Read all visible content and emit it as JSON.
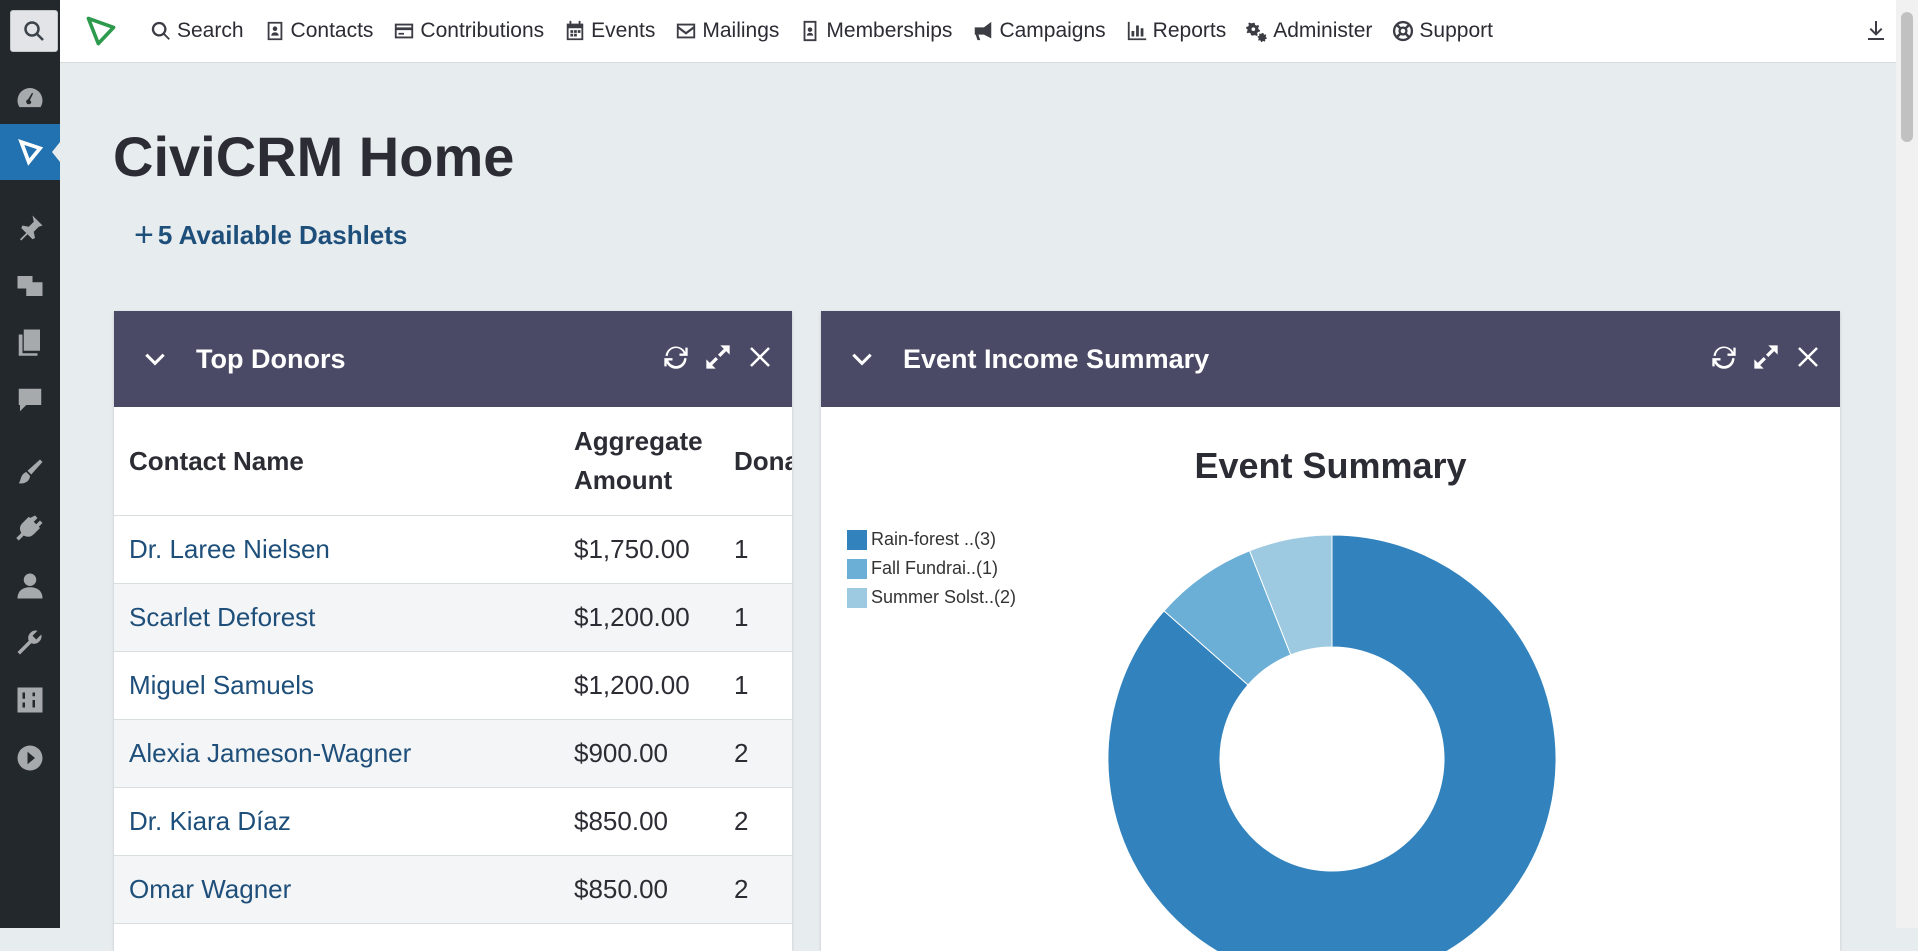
{
  "menubar": {
    "items": [
      {
        "label": "Search",
        "icon": "search-icon"
      },
      {
        "label": "Contacts",
        "icon": "contact-card-icon"
      },
      {
        "label": "Contributions",
        "icon": "credit-card-icon"
      },
      {
        "label": "Events",
        "icon": "calendar-icon"
      },
      {
        "label": "Mailings",
        "icon": "envelope-icon"
      },
      {
        "label": "Memberships",
        "icon": "id-badge-icon"
      },
      {
        "label": "Campaigns",
        "icon": "bullhorn-icon"
      },
      {
        "label": "Reports",
        "icon": "bar-chart-icon"
      },
      {
        "label": "Administer",
        "icon": "gears-icon"
      },
      {
        "label": "Support",
        "icon": "lifering-icon"
      }
    ]
  },
  "page": {
    "title": "CiviCRM Home",
    "dashlets_link": "5 Available Dashlets"
  },
  "top_donors": {
    "title": "Top Donors",
    "columns": [
      "Contact Name",
      "Aggregate Amount",
      "Dona"
    ],
    "rows": [
      {
        "name": "Dr. Laree Nielsen",
        "amount": "$1,750.00",
        "count": "1"
      },
      {
        "name": "Scarlet Deforest",
        "amount": "$1,200.00",
        "count": "1"
      },
      {
        "name": "Miguel Samuels",
        "amount": "$1,200.00",
        "count": "1"
      },
      {
        "name": "Alexia Jameson-Wagner",
        "amount": "$900.00",
        "count": "2"
      },
      {
        "name": "Dr. Kiara Díaz",
        "amount": "$850.00",
        "count": "2"
      },
      {
        "name": "Omar Wagner",
        "amount": "$850.00",
        "count": "2"
      }
    ]
  },
  "event_income": {
    "title": "Event Income Summary"
  },
  "chart_data": {
    "type": "pie",
    "title": "Event Summary",
    "legend_position": "top-left",
    "categories": [
      "Rain-forest ..(3)",
      "Fall Fundrai..(1)",
      "Summer Solst..(2)"
    ],
    "values": [
      86.5,
      7.5,
      6.0
    ],
    "colors": [
      "#3182bd",
      "#6baed6",
      "#9ecae1"
    ],
    "donut": true
  }
}
